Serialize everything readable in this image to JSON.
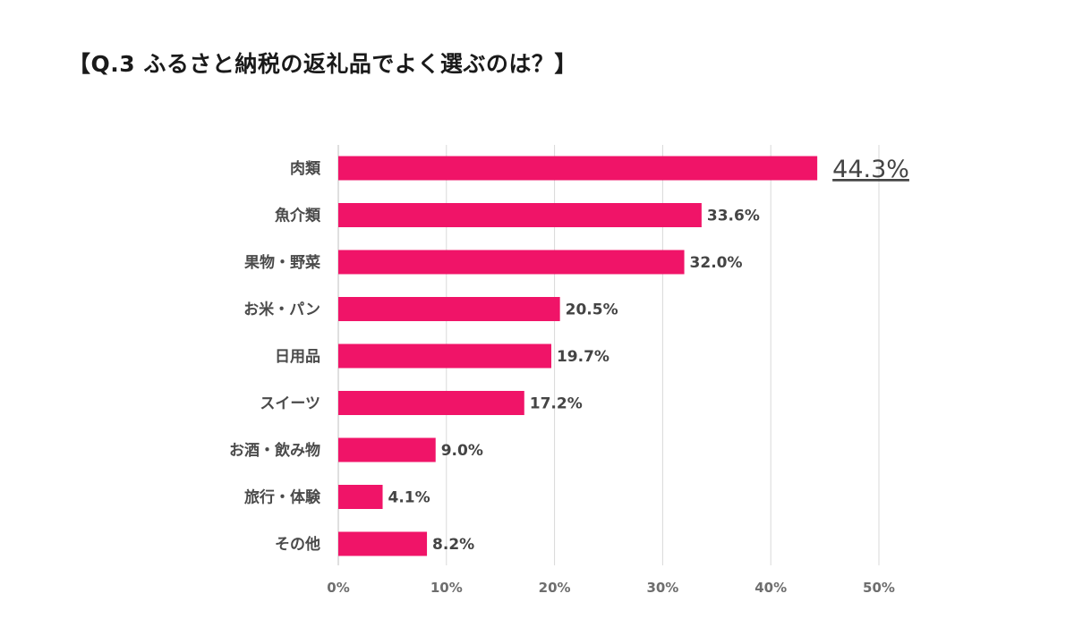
{
  "title": "【Q.3 ふるさと納税の返礼品でよく選ぶのは？】",
  "colors": {
    "bar": "#f01468",
    "highlight_text": "#e0247a",
    "text": "#444444"
  },
  "chart_data": {
    "type": "bar",
    "orientation": "horizontal",
    "title": "【Q.3 ふるさと納税の返礼品でよく選ぶのは？】",
    "xlabel": "",
    "ylabel": "",
    "categories": [
      "肉類",
      "魚介類",
      "果物・野菜",
      "お米・パン",
      "日用品",
      "スイーツ",
      "お酒・飲み物",
      "旅行・体験",
      "その他"
    ],
    "values": [
      44.3,
      33.6,
      32.0,
      20.5,
      19.7,
      17.2,
      9.0,
      4.1,
      8.2
    ],
    "value_labels": [
      "44.3%",
      "33.6%",
      "32.0%",
      "20.5%",
      "19.7%",
      "17.2%",
      "9.0%",
      "4.1%",
      "8.2%"
    ],
    "highlight_index": 0,
    "xlim": [
      0,
      50
    ],
    "xticks": [
      0,
      10,
      20,
      30,
      40,
      50
    ],
    "xtick_labels": [
      "0%",
      "10%",
      "20%",
      "30%",
      "40%",
      "50%"
    ],
    "grid": true,
    "legend": "none"
  }
}
